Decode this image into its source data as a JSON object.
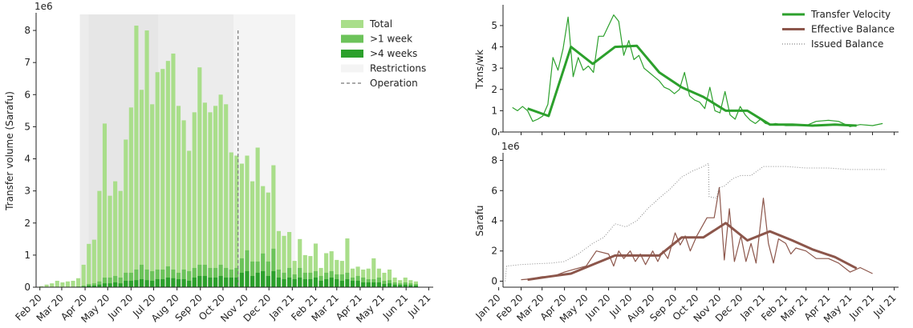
{
  "colors": {
    "total": "#a9de8a",
    "week1": "#6cc35a",
    "week4": "#2ca02c",
    "restrict_dark": "#e6e6e6",
    "restrict_mid": "#ececec",
    "restrict_light": "#f4f4f4",
    "operation": "#777777",
    "velocity": "#2ca02c",
    "balance": "#8c564b",
    "issued": "#888888"
  },
  "chart_data": [
    {
      "type": "bar",
      "panel": "left",
      "xlabel": "",
      "ylabel": "Transfer volume (Sarafu)",
      "multiplier": "1e6",
      "ylim": [
        0,
        8.5
      ],
      "y_ticks": [
        "0",
        "1",
        "2",
        "3",
        "4",
        "5",
        "6",
        "7",
        "8"
      ],
      "x_range": [
        "2020-01-27",
        "2021-07-07"
      ],
      "x_ticks": [
        {
          "date": "2020-02-01",
          "label": "Feb 20"
        },
        {
          "date": "2020-03-01",
          "label": "Mar 20"
        },
        {
          "date": "2020-04-01",
          "label": "Apr 20"
        },
        {
          "date": "2020-05-01",
          "label": "May 20"
        },
        {
          "date": "2020-06-01",
          "label": "Jun 20"
        },
        {
          "date": "2020-07-01",
          "label": "Jul 20"
        },
        {
          "date": "2020-08-01",
          "label": "Aug 20"
        },
        {
          "date": "2020-09-01",
          "label": "Sep 20"
        },
        {
          "date": "2020-10-01",
          "label": "Oct 20"
        },
        {
          "date": "2020-11-01",
          "label": "Nov 20"
        },
        {
          "date": "2020-12-01",
          "label": "Dec 20"
        },
        {
          "date": "2021-01-01",
          "label": "Jan 21"
        },
        {
          "date": "2021-02-01",
          "label": "Feb 21"
        },
        {
          "date": "2021-03-01",
          "label": "Mar 21"
        },
        {
          "date": "2021-04-01",
          "label": "Apr 21"
        },
        {
          "date": "2021-05-01",
          "label": "May 21"
        },
        {
          "date": "2021-06-01",
          "label": "Jun 21"
        },
        {
          "date": "2021-07-01",
          "label": "Jul 21"
        }
      ],
      "restrictions": [
        {
          "start": "2020-03-25",
          "end": "2021-01-05",
          "shade": "light"
        },
        {
          "start": "2020-03-25",
          "end": "2020-10-15",
          "shade": "mid"
        },
        {
          "start": "2020-04-06",
          "end": "2020-07-07",
          "shade": "dark"
        }
      ],
      "operation_date": "2020-10-21",
      "operation_top": 8,
      "weeks_start": "2020-02-03",
      "week_days": 7,
      "series": [
        {
          "name": "Total",
          "values": [
            0.03,
            0.08,
            0.12,
            0.2,
            0.15,
            0.18,
            0.2,
            0.28,
            0.7,
            1.35,
            1.48,
            3.0,
            5.1,
            2.85,
            3.3,
            3.0,
            4.6,
            5.6,
            8.15,
            6.15,
            8.0,
            5.7,
            6.7,
            6.8,
            7.05,
            7.28,
            5.65,
            5.2,
            4.25,
            5.45,
            6.85,
            5.75,
            5.45,
            5.65,
            6.0,
            5.7,
            4.2,
            4.1,
            3.85,
            4.1,
            3.3,
            4.35,
            3.15,
            2.95,
            3.8,
            1.75,
            1.6,
            1.72,
            0.82,
            1.5,
            1.0,
            0.97,
            1.36,
            0.6,
            1.06,
            1.12,
            0.85,
            0.82,
            1.52,
            0.58,
            0.64,
            0.55,
            0.58,
            0.9,
            0.58,
            0.45,
            0.55,
            0.3,
            0.22,
            0.3,
            0.22,
            0.18
          ]
        },
        {
          "name": ">1 week",
          "values": [
            0,
            0,
            0,
            0,
            0,
            0,
            0,
            0.02,
            0.05,
            0.1,
            0.12,
            0.18,
            0.3,
            0.3,
            0.35,
            0.3,
            0.45,
            0.45,
            0.55,
            0.7,
            0.55,
            0.5,
            0.55,
            0.55,
            0.65,
            0.55,
            0.45,
            0.55,
            0.5,
            0.6,
            0.7,
            0.7,
            0.6,
            0.6,
            0.7,
            0.6,
            0.55,
            0.6,
            0.9,
            1.15,
            0.8,
            0.8,
            1.05,
            0.8,
            1.2,
            0.55,
            0.45,
            0.6,
            0.4,
            0.6,
            0.45,
            0.45,
            0.5,
            0.35,
            0.45,
            0.5,
            0.4,
            0.4,
            0.45,
            0.3,
            0.35,
            0.3,
            0.25,
            0.25,
            0.3,
            0.2,
            0.22,
            0.15,
            0.12,
            0.15,
            0.12,
            0.1
          ]
        },
        {
          "name": ">4 weeks",
          "values": [
            0,
            0,
            0,
            0,
            0,
            0,
            0,
            0,
            0.02,
            0.05,
            0.05,
            0.08,
            0.12,
            0.12,
            0.15,
            0.12,
            0.2,
            0.2,
            0.22,
            0.25,
            0.22,
            0.2,
            0.25,
            0.25,
            0.3,
            0.28,
            0.25,
            0.25,
            0.2,
            0.3,
            0.35,
            0.35,
            0.3,
            0.3,
            0.35,
            0.3,
            0.3,
            0.3,
            0.45,
            0.5,
            0.35,
            0.45,
            0.5,
            0.35,
            0.5,
            0.3,
            0.25,
            0.3,
            0.25,
            0.3,
            0.25,
            0.25,
            0.3,
            0.2,
            0.25,
            0.3,
            0.25,
            0.2,
            0.25,
            0.2,
            0.2,
            0.15,
            0.15,
            0.15,
            0.15,
            0.1,
            0.12,
            0.08,
            0.07,
            0.08,
            0.06,
            0.05
          ]
        }
      ],
      "legend": [
        "Total",
        ">1 week",
        ">4 weeks",
        "Restrictions",
        "Operation"
      ]
    },
    {
      "type": "line",
      "panel": "top-right",
      "ylabel": "Txns/wk",
      "xlabel": "",
      "ylim": [
        0,
        5.9
      ],
      "y_ticks": [
        "0",
        "1",
        "2",
        "3",
        "4",
        "5"
      ],
      "x_range": [
        "2020-01-07",
        "2021-07-07"
      ],
      "series": [
        {
          "name": "Transfer Velocity",
          "legend": true,
          "style": "smooth",
          "x": [
            "2020-02-10",
            "2020-03-10",
            "2020-04-10",
            "2020-05-10",
            "2020-06-10",
            "2020-07-10",
            "2020-08-10",
            "2020-09-10",
            "2020-10-10",
            "2020-11-10",
            "2020-12-10",
            "2021-01-10",
            "2021-02-10",
            "2021-03-10",
            "2021-04-10",
            "2021-05-10"
          ],
          "y": [
            1.1,
            0.75,
            4.0,
            3.2,
            4.0,
            4.05,
            2.8,
            2.1,
            1.65,
            1.0,
            1.0,
            0.35,
            0.35,
            0.3,
            0.35,
            0.3
          ]
        },
        {
          "name": "Transfer Velocity (weekly)",
          "legend": false,
          "style": "thin",
          "x": [
            "2020-01-20",
            "2020-01-27",
            "2020-02-03",
            "2020-02-10",
            "2020-02-17",
            "2020-02-24",
            "2020-03-02",
            "2020-03-09",
            "2020-03-16",
            "2020-03-23",
            "2020-03-30",
            "2020-04-06",
            "2020-04-13",
            "2020-04-20",
            "2020-04-27",
            "2020-05-04",
            "2020-05-11",
            "2020-05-18",
            "2020-05-25",
            "2020-06-01",
            "2020-06-08",
            "2020-06-15",
            "2020-06-22",
            "2020-06-29",
            "2020-07-06",
            "2020-07-13",
            "2020-07-20",
            "2020-07-27",
            "2020-08-03",
            "2020-08-10",
            "2020-08-17",
            "2020-08-24",
            "2020-08-31",
            "2020-09-07",
            "2020-09-14",
            "2020-09-21",
            "2020-09-28",
            "2020-10-05",
            "2020-10-12",
            "2020-10-19",
            "2020-10-26",
            "2020-11-02",
            "2020-11-09",
            "2020-11-16",
            "2020-11-23",
            "2020-11-30",
            "2020-12-07",
            "2020-12-14",
            "2020-12-21",
            "2020-12-28",
            "2021-01-04",
            "2021-01-11",
            "2021-01-18",
            "2021-01-25",
            "2021-02-01",
            "2021-02-15",
            "2021-03-01",
            "2021-03-15",
            "2021-04-01",
            "2021-04-15",
            "2021-05-01",
            "2021-05-15",
            "2021-06-01",
            "2021-06-15"
          ],
          "y": [
            1.15,
            1.0,
            1.2,
            1.0,
            0.5,
            0.6,
            0.75,
            1.3,
            3.5,
            2.9,
            3.9,
            5.4,
            2.6,
            3.5,
            2.9,
            3.1,
            2.8,
            4.5,
            4.5,
            5.0,
            5.5,
            5.2,
            3.6,
            4.3,
            3.4,
            3.6,
            3.0,
            2.8,
            2.6,
            2.4,
            2.1,
            2.0,
            1.8,
            2.0,
            2.8,
            1.7,
            1.5,
            1.4,
            1.1,
            2.1,
            1.0,
            0.9,
            1.9,
            0.8,
            0.6,
            1.2,
            0.8,
            0.55,
            0.4,
            0.6,
            0.4,
            0.35,
            0.4,
            0.35,
            0.3,
            0.3,
            0.3,
            0.5,
            0.55,
            0.5,
            0.25,
            0.35,
            0.3,
            0.4
          ]
        }
      ],
      "legend": [
        "Transfer Velocity",
        "Effective Balance",
        "Issued Balance"
      ]
    },
    {
      "type": "line",
      "panel": "bottom-right",
      "ylabel": "Sarafu",
      "xlabel": "",
      "multiplier": "1e6",
      "ylim": [
        -0.4,
        8.4
      ],
      "y_ticks": [
        "0",
        "2",
        "4",
        "6",
        "8"
      ],
      "x_range": [
        "2020-01-07",
        "2021-07-07"
      ],
      "x_ticks": [
        {
          "date": "2020-01-01",
          "label": "Jan 20"
        },
        {
          "date": "2020-02-01",
          "label": "Feb 20"
        },
        {
          "date": "2020-03-01",
          "label": "Mar 20"
        },
        {
          "date": "2020-04-01",
          "label": "Apr 20"
        },
        {
          "date": "2020-05-01",
          "label": "May 20"
        },
        {
          "date": "2020-06-01",
          "label": "Jun 20"
        },
        {
          "date": "2020-07-01",
          "label": "Jul 20"
        },
        {
          "date": "2020-08-01",
          "label": "Aug 20"
        },
        {
          "date": "2020-09-01",
          "label": "Sep 20"
        },
        {
          "date": "2020-10-01",
          "label": "Oct 20"
        },
        {
          "date": "2020-11-01",
          "label": "Nov 20"
        },
        {
          "date": "2020-12-01",
          "label": "Dec 20"
        },
        {
          "date": "2021-01-01",
          "label": "Jan 21"
        },
        {
          "date": "2021-02-01",
          "label": "Feb 21"
        },
        {
          "date": "2021-03-01",
          "label": "Mar 21"
        },
        {
          "date": "2021-04-01",
          "label": "Apr 21"
        },
        {
          "date": "2021-05-01",
          "label": "May 21"
        },
        {
          "date": "2021-06-01",
          "label": "Jun 21"
        },
        {
          "date": "2021-07-01",
          "label": "Jul 21"
        }
      ],
      "series": [
        {
          "name": "Effective Balance",
          "style": "smooth",
          "x": [
            "2020-02-10",
            "2020-03-10",
            "2020-04-10",
            "2020-05-10",
            "2020-06-10",
            "2020-07-10",
            "2020-08-10",
            "2020-09-10",
            "2020-10-10",
            "2020-11-10",
            "2020-12-10",
            "2021-01-10",
            "2021-02-10",
            "2021-03-10",
            "2021-04-10",
            "2021-05-10"
          ],
          "y": [
            0.1,
            0.3,
            0.5,
            1.1,
            1.7,
            1.7,
            1.7,
            2.9,
            2.9,
            3.85,
            2.7,
            3.3,
            2.7,
            2.1,
            1.6,
            0.85
          ]
        },
        {
          "name": "Effective Balance (weekly)",
          "legend": false,
          "style": "thin",
          "x": [
            "2020-02-01",
            "2020-02-15",
            "2020-03-01",
            "2020-03-15",
            "2020-04-01",
            "2020-04-15",
            "2020-05-01",
            "2020-05-15",
            "2020-06-01",
            "2020-06-08",
            "2020-06-15",
            "2020-06-22",
            "2020-07-01",
            "2020-07-08",
            "2020-07-15",
            "2020-07-22",
            "2020-08-01",
            "2020-08-08",
            "2020-08-15",
            "2020-08-22",
            "2020-09-01",
            "2020-09-08",
            "2020-09-15",
            "2020-09-22",
            "2020-10-01",
            "2020-10-15",
            "2020-10-25",
            "2020-11-01",
            "2020-11-08",
            "2020-11-15",
            "2020-11-22",
            "2020-12-01",
            "2020-12-08",
            "2020-12-15",
            "2020-12-22",
            "2021-01-01",
            "2021-01-08",
            "2021-01-15",
            "2021-01-22",
            "2021-02-01",
            "2021-02-08",
            "2021-02-15",
            "2021-03-01",
            "2021-03-15",
            "2021-04-01",
            "2021-04-15",
            "2021-05-01",
            "2021-05-15",
            "2021-06-01"
          ],
          "y": [
            0.1,
            0.15,
            0.3,
            0.3,
            0.6,
            0.8,
            1.0,
            2.0,
            1.8,
            1.0,
            2.0,
            1.5,
            2.0,
            1.3,
            1.8,
            1.1,
            2.0,
            1.3,
            2.0,
            1.5,
            3.2,
            2.4,
            3.0,
            2.0,
            3.0,
            4.2,
            4.2,
            6.2,
            1.4,
            4.8,
            1.3,
            3.0,
            1.3,
            2.5,
            1.2,
            5.5,
            2.5,
            1.2,
            2.8,
            2.5,
            1.8,
            2.2,
            2.0,
            1.5,
            1.5,
            1.2,
            0.6,
            0.9,
            0.5
          ]
        },
        {
          "name": "Issued Balance",
          "style": "dotted",
          "x": [
            "2020-01-10",
            "2020-01-12",
            "2020-02-01",
            "2020-02-20",
            "2020-03-15",
            "2020-04-01",
            "2020-04-20",
            "2020-05-10",
            "2020-05-25",
            "2020-06-10",
            "2020-06-25",
            "2020-07-10",
            "2020-07-25",
            "2020-08-10",
            "2020-08-25",
            "2020-09-10",
            "2020-09-25",
            "2020-10-10",
            "2020-10-17",
            "2020-10-18",
            "2020-10-28",
            "2020-11-01",
            "2020-11-08",
            "2020-11-20",
            "2020-12-01",
            "2020-12-15",
            "2021-01-01",
            "2021-01-15",
            "2021-02-01",
            "2021-03-01",
            "2021-04-01",
            "2021-05-01",
            "2021-06-01",
            "2021-06-20"
          ],
          "y": [
            0,
            1.0,
            1.1,
            1.15,
            1.2,
            1.3,
            1.8,
            2.5,
            2.9,
            3.8,
            3.6,
            4.0,
            4.8,
            5.5,
            6.1,
            6.9,
            7.3,
            7.6,
            7.8,
            5.6,
            5.5,
            6.2,
            6.3,
            6.8,
            7.0,
            7.0,
            7.6,
            7.6,
            7.6,
            7.5,
            7.5,
            7.4,
            7.4,
            7.4
          ]
        }
      ]
    }
  ]
}
